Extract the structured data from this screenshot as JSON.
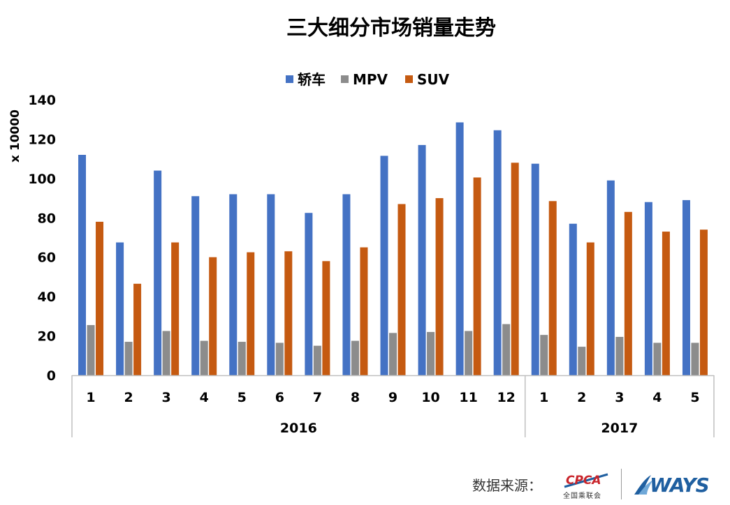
{
  "chart_data": {
    "type": "bar",
    "title": "三大细分市场销量走势",
    "ylabel": "x 10000",
    "xlabel": "",
    "ylim": [
      0,
      140
    ],
    "yticks": [
      0,
      20,
      40,
      60,
      80,
      100,
      120,
      140
    ],
    "grid": false,
    "legend_position": "top-center",
    "categories": [
      "1",
      "2",
      "3",
      "4",
      "5",
      "6",
      "7",
      "8",
      "9",
      "10",
      "11",
      "12",
      "1",
      "2",
      "3",
      "4",
      "5"
    ],
    "groups": [
      {
        "label": "2016",
        "count": 12
      },
      {
        "label": "2017",
        "count": 5
      }
    ],
    "series": [
      {
        "name": "轿车",
        "color": "#4472C4",
        "values": [
          112,
          67.5,
          104,
          91,
          92,
          92,
          82.5,
          92,
          111.5,
          117,
          128.5,
          124.5,
          107.5,
          77,
          99,
          88,
          89
        ]
      },
      {
        "name": "MPV",
        "color": "#8C8C8C",
        "values": [
          25.5,
          17,
          22.5,
          17.5,
          17,
          16.5,
          15,
          17.5,
          21.5,
          22,
          22.5,
          26,
          20.5,
          14.5,
          19.5,
          16.5,
          16.5
        ]
      },
      {
        "name": "SUV",
        "color": "#C55A11",
        "values": [
          78,
          46.5,
          67.5,
          60,
          62.5,
          63,
          58,
          65,
          87,
          90,
          100.5,
          108,
          88.5,
          67.5,
          83,
          73,
          74
        ]
      }
    ]
  },
  "footer": {
    "source_label": "数据来源：",
    "logo_cpca_text": "CPCA",
    "logo_cpca_sub": "全国乘联会",
    "logo_ways_text": "WAYS"
  }
}
